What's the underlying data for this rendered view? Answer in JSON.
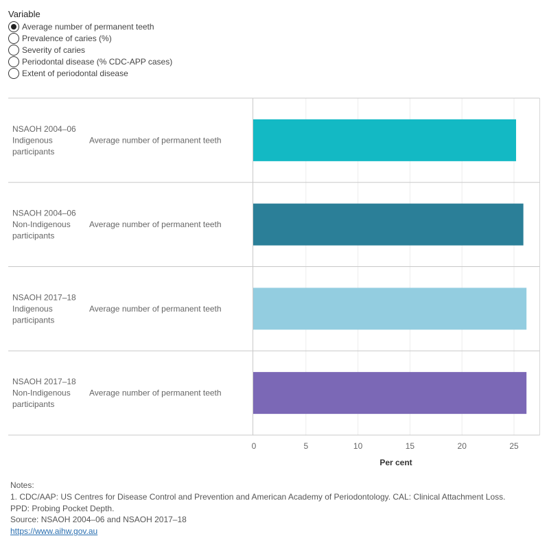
{
  "filter": {
    "title": "Variable",
    "options": [
      {
        "label": "Average number of permanent teeth",
        "selected": true
      },
      {
        "label": "Prevalence of caries (%)",
        "selected": false
      },
      {
        "label": "Severity of caries",
        "selected": false
      },
      {
        "label": "Periodontal disease (% CDC-APP cases)",
        "selected": false
      },
      {
        "label": "Extent of periodontal disease",
        "selected": false
      }
    ]
  },
  "chart_data": {
    "type": "bar",
    "orientation": "horizontal",
    "categories": [
      [
        "NSAOH 2004–06",
        "Indigenous",
        "participants"
      ],
      [
        "NSAOH 2004–06",
        "Non-Indigenous",
        "participants"
      ],
      [
        "NSAOH 2017–18",
        "Indigenous",
        "participants"
      ],
      [
        "NSAOH 2017–18",
        "Non-Indigenous",
        "participants"
      ]
    ],
    "variable_label": "Average number of permanent teeth",
    "values": [
      25.2,
      25.9,
      26.2,
      26.2
    ],
    "colors": [
      "#13b9c4",
      "#2b7f98",
      "#93cde0",
      "#7b68b6"
    ],
    "xlim": [
      0,
      27.5
    ],
    "xticks": [
      0,
      5,
      10,
      15,
      20,
      25
    ],
    "xlabel": "Per cent",
    "grid": true
  },
  "notes": {
    "heading": "Notes:",
    "lines": [
      "1. CDC/AAP: US Centres for Disease Control and Prevention and American Academy of Periodontology. CAL: Clinical Attachment Loss.",
      "PPD: Probing Pocket Depth.",
      "Source: NSAOH 2004–06 and NSAOH 2017–18"
    ],
    "link": "https://www.aihw.gov.au"
  }
}
